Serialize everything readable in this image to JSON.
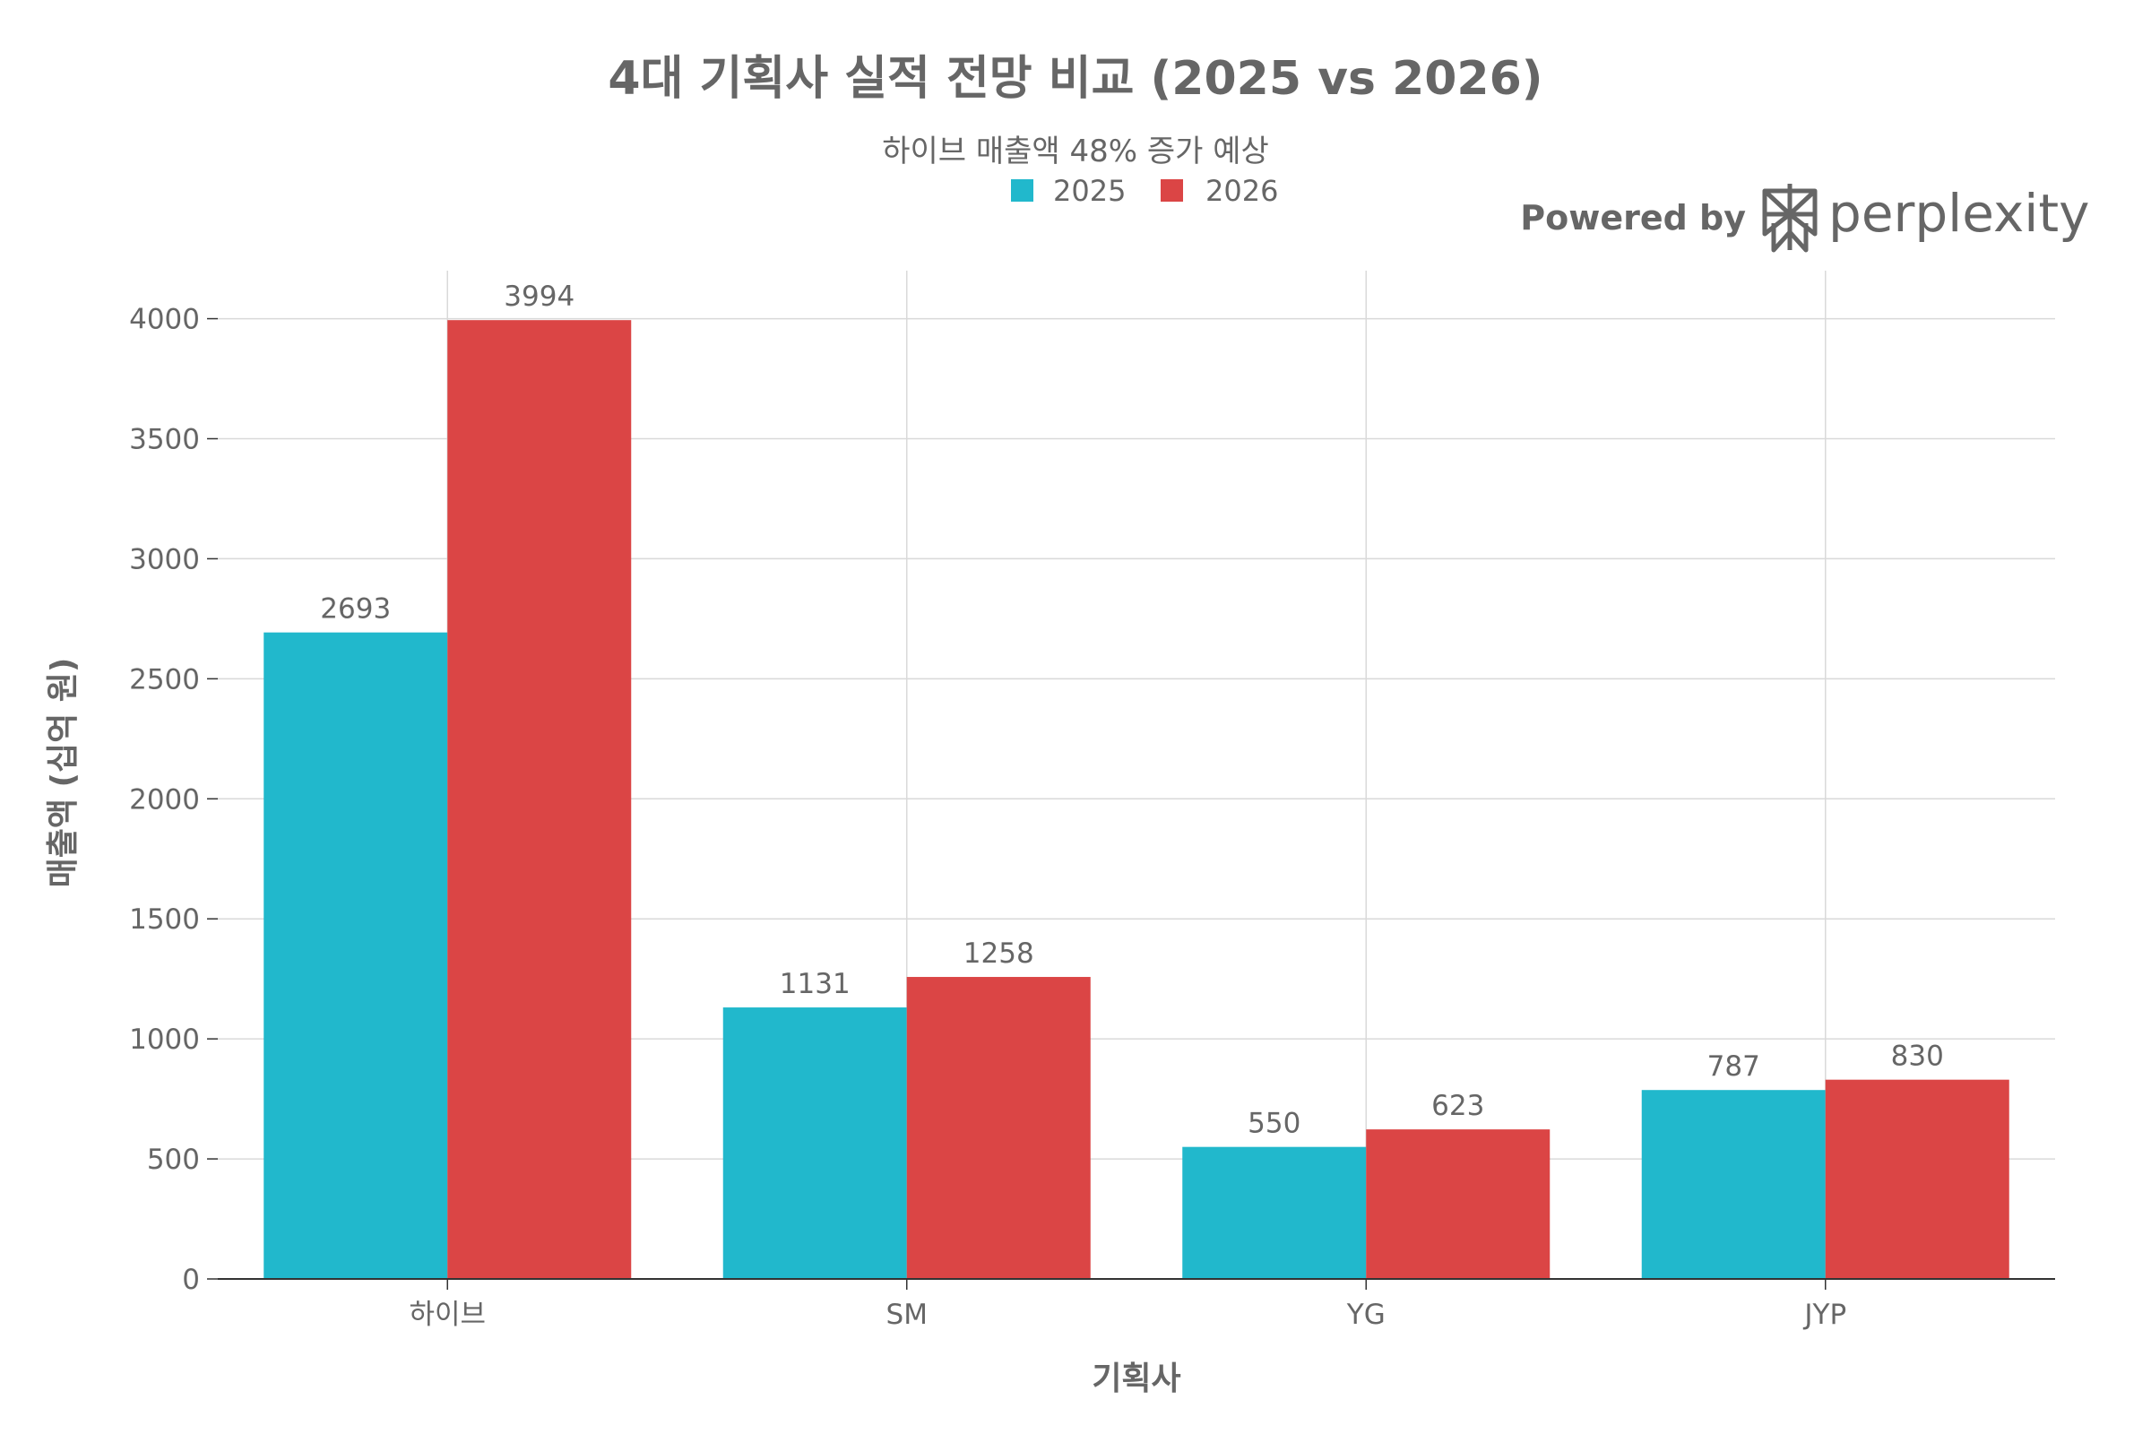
{
  "colors": {
    "series_2025": "#21B8CC",
    "series_2026": "#DB4545",
    "text": "#666666",
    "grid": "#D9D9D9",
    "axis": "#333333"
  },
  "branding": {
    "powered_by": "Powered by",
    "brand": "perplexity",
    "logo_icon": "perplexity-logo-icon"
  },
  "chart_data": {
    "type": "bar",
    "title": "4대 기획사 실적 전망 비교 (2025 vs 2026)",
    "subtitle": "하이브 매출액 48% 증가 예상",
    "xlabel": "기획사",
    "ylabel": "매출액 (십억 원)",
    "categories": [
      "하이브",
      "SM",
      "YG",
      "JYP"
    ],
    "series": [
      {
        "name": "2025",
        "values": [
          2693,
          1131,
          550,
          787
        ]
      },
      {
        "name": "2026",
        "values": [
          3994,
          1258,
          623,
          830
        ]
      }
    ],
    "ylim": [
      0,
      4200
    ],
    "yticks": [
      0,
      500,
      1000,
      1500,
      2000,
      2500,
      3000,
      3500,
      4000
    ],
    "grid": true,
    "legend": "top-center"
  }
}
